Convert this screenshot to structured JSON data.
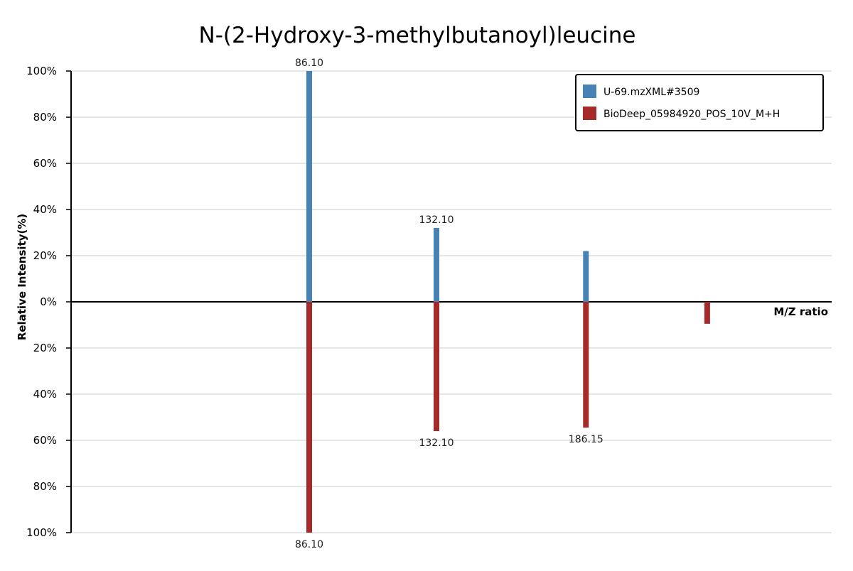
{
  "chart_data": {
    "type": "bar",
    "title": "N-(2-Hydroxy-3-methylbutanoyl)leucine",
    "xlabel": "M/Z ratio",
    "ylabel": "Relative Intensity(%)",
    "ylim_top": [
      0,
      100
    ],
    "ylim_bottom": [
      0,
      100
    ],
    "y_ticks_top": [
      "100%",
      "80%",
      "60%",
      "40%",
      "20%",
      "0%"
    ],
    "y_ticks_bottom": [
      "20%",
      "40%",
      "60%",
      "80%",
      "100%"
    ],
    "grid": true,
    "legend_position": "top-right",
    "series": [
      {
        "name": "U-69.mzXML#3509",
        "color": "#4682b4",
        "direction": "up",
        "peaks": [
          {
            "mz": 86.1,
            "intensity": 100,
            "label": "86.10"
          },
          {
            "mz": 132.1,
            "intensity": 32,
            "label": "132.10"
          },
          {
            "mz": 186.15,
            "intensity": 22,
            "label": ""
          }
        ]
      },
      {
        "name": "BioDeep_05984920_POS_10V_M+H",
        "color": "#a52a2a",
        "direction": "down",
        "peaks": [
          {
            "mz": 86.1,
            "intensity": 100,
            "label": "86.10"
          },
          {
            "mz": 132.1,
            "intensity": 56,
            "label": "132.10"
          },
          {
            "mz": 186.15,
            "intensity": 54.5,
            "label": "186.15"
          },
          {
            "mz": 230.0,
            "intensity": 9.5,
            "label": ""
          }
        ]
      }
    ]
  }
}
